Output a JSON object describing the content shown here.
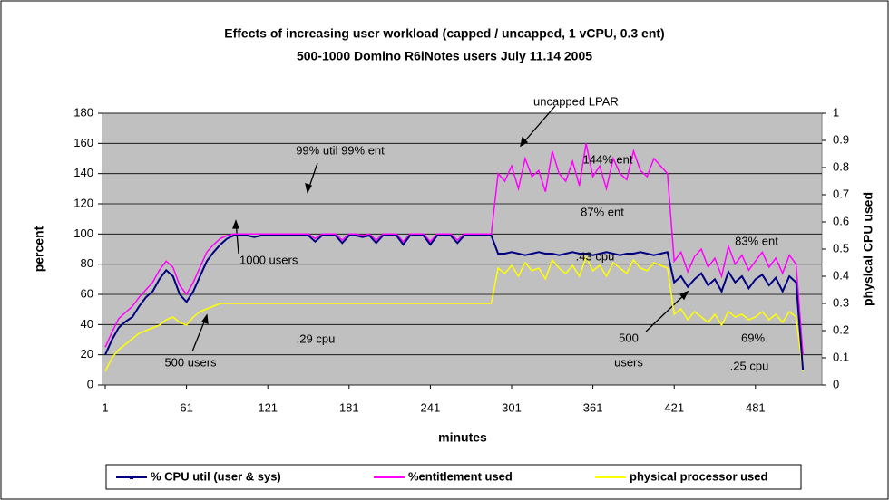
{
  "chart_data": {
    "type": "line",
    "title": "Effects of increasing user workload (capped / uncapped, 1 vCPU, 0.3 ent)",
    "subtitle": "500-1000 Domino R6iNotes users July 11.14 2005",
    "x_label": "minutes",
    "y_label": "percent",
    "y2_label": "physical CPU used",
    "x": [
      1,
      6,
      11,
      16,
      21,
      26,
      31,
      36,
      41,
      46,
      51,
      56,
      61,
      66,
      71,
      76,
      81,
      86,
      91,
      96,
      101,
      106,
      111,
      116,
      121,
      126,
      131,
      136,
      141,
      146,
      151,
      156,
      161,
      166,
      171,
      176,
      181,
      186,
      191,
      196,
      201,
      206,
      211,
      216,
      221,
      226,
      231,
      236,
      241,
      246,
      251,
      256,
      261,
      266,
      271,
      276,
      281,
      286,
      291,
      296,
      301,
      306,
      311,
      316,
      321,
      326,
      331,
      336,
      341,
      346,
      351,
      356,
      361,
      366,
      371,
      376,
      381,
      386,
      391,
      396,
      401,
      406,
      411,
      416,
      421,
      426,
      431,
      436,
      441,
      446,
      451,
      456,
      461,
      466,
      471,
      476,
      481,
      486,
      491,
      496,
      501,
      506,
      511,
      516
    ],
    "series": [
      {
        "name": "% CPU util (user & sys)",
        "color": "#000080",
        "axis": "y",
        "values": [
          20,
          30,
          38,
          42,
          45,
          52,
          58,
          62,
          70,
          76,
          72,
          60,
          55,
          62,
          72,
          82,
          88,
          93,
          97,
          99,
          99,
          99,
          98,
          99,
          99,
          99,
          99,
          99,
          99,
          99,
          99,
          95,
          99,
          99,
          99,
          94,
          99,
          99,
          98,
          99,
          94,
          99,
          99,
          99,
          93,
          99,
          99,
          99,
          93,
          99,
          99,
          99,
          94,
          99,
          99,
          99,
          99,
          99,
          87,
          87,
          88,
          87,
          86,
          87,
          88,
          87,
          87,
          86,
          87,
          88,
          87,
          87,
          86,
          87,
          88,
          87,
          86,
          87,
          87,
          88,
          87,
          86,
          87,
          88,
          68,
          72,
          65,
          70,
          74,
          66,
          70,
          62,
          75,
          68,
          72,
          64,
          70,
          73,
          66,
          71,
          62,
          72,
          68,
          10
        ]
      },
      {
        "name": "%entitlement used",
        "color": "#ff00ff",
        "axis": "y",
        "values": [
          25,
          35,
          44,
          48,
          52,
          58,
          63,
          68,
          76,
          82,
          78,
          66,
          60,
          68,
          78,
          88,
          93,
          97,
          99,
          100,
          100,
          100,
          100,
          100,
          100,
          100,
          100,
          100,
          100,
          100,
          100,
          97,
          100,
          100,
          100,
          96,
          100,
          100,
          99,
          100,
          96,
          100,
          100,
          100,
          95,
          100,
          100,
          100,
          95,
          100,
          100,
          100,
          96,
          100,
          100,
          100,
          100,
          100,
          140,
          135,
          145,
          130,
          150,
          138,
          142,
          128,
          155,
          140,
          135,
          148,
          132,
          160,
          138,
          145,
          130,
          150,
          140,
          136,
          155,
          142,
          138,
          150,
          145,
          140,
          82,
          88,
          75,
          85,
          90,
          78,
          84,
          72,
          92,
          80,
          86,
          76,
          82,
          88,
          78,
          84,
          74,
          86,
          80,
          20
        ]
      },
      {
        "name": "physical processor used",
        "color": "#ffff00",
        "axis": "y2",
        "values": [
          0.05,
          0.1,
          0.13,
          0.15,
          0.17,
          0.19,
          0.2,
          0.21,
          0.22,
          0.24,
          0.25,
          0.23,
          0.22,
          0.25,
          0.27,
          0.28,
          0.29,
          0.3,
          0.3,
          0.3,
          0.3,
          0.3,
          0.3,
          0.3,
          0.3,
          0.3,
          0.3,
          0.3,
          0.3,
          0.3,
          0.3,
          0.3,
          0.3,
          0.3,
          0.3,
          0.3,
          0.3,
          0.3,
          0.3,
          0.3,
          0.3,
          0.3,
          0.3,
          0.3,
          0.3,
          0.3,
          0.3,
          0.3,
          0.3,
          0.3,
          0.3,
          0.3,
          0.3,
          0.3,
          0.3,
          0.3,
          0.3,
          0.3,
          0.43,
          0.41,
          0.44,
          0.4,
          0.45,
          0.42,
          0.43,
          0.39,
          0.46,
          0.43,
          0.41,
          0.44,
          0.4,
          0.47,
          0.42,
          0.44,
          0.4,
          0.45,
          0.43,
          0.41,
          0.46,
          0.43,
          0.42,
          0.45,
          0.44,
          0.43,
          0.26,
          0.28,
          0.24,
          0.27,
          0.25,
          0.23,
          0.26,
          0.22,
          0.27,
          0.25,
          0.26,
          0.24,
          0.25,
          0.27,
          0.24,
          0.26,
          0.23,
          0.27,
          0.25,
          0.05
        ]
      }
    ],
    "xlim": [
      -1,
      530
    ],
    "xticks": [
      1,
      61,
      121,
      181,
      241,
      301,
      361,
      421,
      481
    ],
    "ylim": [
      0,
      180
    ],
    "yticks": [
      0,
      20,
      40,
      60,
      80,
      100,
      120,
      140,
      160,
      180
    ],
    "y2lim": [
      0,
      1
    ],
    "y2ticks": [
      0,
      0.1,
      0.2,
      0.3,
      0.4,
      0.5,
      0.6,
      0.7,
      0.8,
      0.9,
      1
    ],
    "grid": true,
    "legend": "bottom",
    "annotations": [
      "uncapped LPAR",
      "99% util 99% ent",
      "144% ent",
      "83% ent",
      "87% ent",
      "1000 users",
      ".43 cpu",
      "69%",
      "500 users",
      ".29 cpu",
      "500",
      "users",
      ".25 cpu"
    ]
  }
}
